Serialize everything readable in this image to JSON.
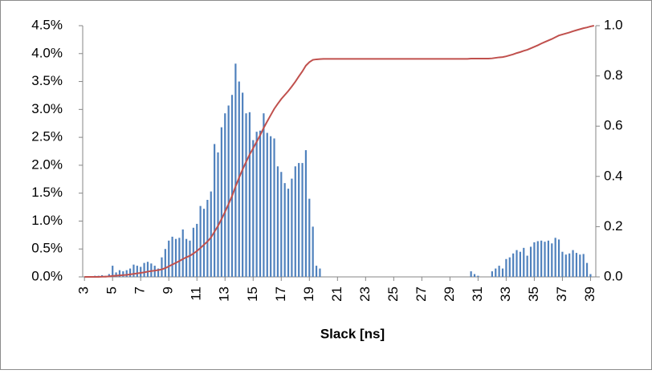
{
  "chart_data": {
    "type": "bar",
    "x_label": "Slack [ns]",
    "x": [
      3,
      3.25,
      3.5,
      3.75,
      4,
      4.25,
      4.5,
      4.75,
      5,
      5.25,
      5.5,
      5.75,
      6,
      6.25,
      6.5,
      6.75,
      7,
      7.25,
      7.5,
      7.75,
      8,
      8.25,
      8.5,
      8.75,
      9,
      9.25,
      9.5,
      9.75,
      10,
      10.25,
      10.5,
      10.75,
      11,
      11.25,
      11.5,
      11.75,
      12,
      12.25,
      12.5,
      12.75,
      13,
      13.25,
      13.5,
      13.75,
      14,
      14.25,
      14.5,
      14.75,
      15,
      15.25,
      15.5,
      15.75,
      16,
      16.25,
      16.5,
      16.75,
      17,
      17.25,
      17.5,
      17.75,
      18,
      18.25,
      18.5,
      18.75,
      19,
      19.25,
      19.5,
      19.75,
      20,
      20.25,
      20.5,
      20.75,
      21,
      21.25,
      21.5,
      21.75,
      22,
      22.25,
      22.5,
      22.75,
      23,
      23.25,
      23.5,
      23.75,
      24,
      24.25,
      24.5,
      24.75,
      25,
      25.25,
      25.5,
      25.75,
      26,
      26.25,
      26.5,
      26.75,
      27,
      27.25,
      27.5,
      27.75,
      28,
      28.25,
      28.5,
      28.75,
      29,
      29.25,
      29.5,
      29.75,
      30,
      30.25,
      30.5,
      30.75,
      31,
      31.25,
      31.5,
      31.75,
      32,
      32.25,
      32.5,
      32.75,
      33,
      33.25,
      33.5,
      33.75,
      34,
      34.25,
      34.5,
      34.75,
      35,
      35.25,
      35.5,
      35.75,
      36,
      36.25,
      36.5,
      36.75,
      37,
      37.25,
      37.5,
      37.75,
      38,
      38.25,
      38.5,
      38.75,
      39,
      39.25
    ],
    "series": [
      {
        "type": "bar",
        "color": "#4f81bd",
        "values": [
          0,
          0,
          0,
          0.02,
          0.02,
          0.03,
          0.02,
          0.05,
          0.2,
          0.08,
          0.12,
          0.1,
          0.12,
          0.15,
          0.22,
          0.2,
          0.18,
          0.25,
          0.27,
          0.24,
          0.2,
          0.15,
          0.35,
          0.5,
          0.65,
          0.72,
          0.68,
          0.7,
          0.85,
          0.68,
          0.65,
          0.88,
          0.95,
          1.27,
          1.22,
          1.38,
          1.53,
          2.38,
          2.23,
          2.68,
          2.93,
          3.07,
          3.26,
          3.82,
          3.5,
          3.3,
          2.93,
          2.95,
          2.45,
          2.6,
          2.62,
          2.93,
          2.58,
          2.52,
          2.48,
          1.98,
          1.88,
          1.68,
          1.58,
          1.76,
          1.98,
          2.04,
          2.04,
          2.27,
          1.4,
          0.9,
          0.2,
          0.15,
          0,
          0,
          0,
          0,
          0,
          0,
          0,
          0,
          0,
          0,
          0,
          0,
          0,
          0,
          0,
          0,
          0,
          0,
          0,
          0,
          0,
          0,
          0,
          0,
          0,
          0,
          0,
          0,
          0,
          0,
          0,
          0,
          0,
          0,
          0,
          0,
          0,
          0,
          0,
          0,
          0,
          0,
          0.1,
          0.05,
          0.02,
          0,
          0,
          0,
          0.1,
          0.15,
          0.2,
          0.15,
          0.32,
          0.35,
          0.42,
          0.48,
          0.45,
          0.52,
          0.38,
          0.54,
          0.62,
          0.64,
          0.65,
          0.63,
          0.65,
          0.6,
          0.7,
          0.67,
          0.45,
          0.4,
          0.42,
          0.48,
          0.43,
          0.4,
          0.41,
          0.25,
          0.05,
          0
        ]
      },
      {
        "type": "line",
        "axis": "y2",
        "color": "#c0504d",
        "values": [
          0,
          0,
          0,
          0,
          0,
          0.001,
          0.001,
          0.002,
          0.004,
          0.005,
          0.006,
          0.007,
          0.008,
          0.01,
          0.012,
          0.014,
          0.016,
          0.018,
          0.021,
          0.023,
          0.025,
          0.027,
          0.03,
          0.035,
          0.042,
          0.049,
          0.056,
          0.063,
          0.071,
          0.078,
          0.084,
          0.093,
          0.103,
          0.115,
          0.128,
          0.141,
          0.157,
          0.18,
          0.203,
          0.23,
          0.259,
          0.29,
          0.322,
          0.36,
          0.395,
          0.428,
          0.458,
          0.487,
          0.512,
          0.538,
          0.564,
          0.593,
          0.619,
          0.644,
          0.669,
          0.689,
          0.708,
          0.724,
          0.74,
          0.758,
          0.777,
          0.798,
          0.818,
          0.841,
          0.855,
          0.864,
          0.866,
          0.867,
          0.868,
          0.868,
          0.868,
          0.868,
          0.868,
          0.868,
          0.868,
          0.868,
          0.868,
          0.868,
          0.868,
          0.868,
          0.868,
          0.868,
          0.868,
          0.868,
          0.868,
          0.868,
          0.868,
          0.868,
          0.868,
          0.868,
          0.868,
          0.868,
          0.868,
          0.868,
          0.868,
          0.868,
          0.868,
          0.868,
          0.868,
          0.868,
          0.868,
          0.868,
          0.868,
          0.868,
          0.868,
          0.868,
          0.868,
          0.868,
          0.868,
          0.868,
          0.869,
          0.869,
          0.869,
          0.869,
          0.869,
          0.869,
          0.87,
          0.872,
          0.874,
          0.875,
          0.878,
          0.882,
          0.886,
          0.891,
          0.895,
          0.9,
          0.904,
          0.91,
          0.916,
          0.922,
          0.929,
          0.935,
          0.941,
          0.947,
          0.954,
          0.961,
          0.965,
          0.969,
          0.973,
          0.978,
          0.982,
          0.986,
          0.99,
          0.993,
          0.997,
          1.0
        ]
      }
    ],
    "xlim": [
      2.875,
      39.375
    ],
    "xticks": [
      3,
      5,
      7,
      9,
      11,
      13,
      15,
      17,
      19,
      21,
      23,
      25,
      27,
      29,
      31,
      33,
      35,
      37,
      39
    ],
    "ylim": [
      0,
      4.5
    ],
    "yticks": [
      {
        "value": 0,
        "label": "0.0%"
      },
      {
        "value": 0.5,
        "label": "0.5%"
      },
      {
        "value": 1,
        "label": "1.0%"
      },
      {
        "value": 1.5,
        "label": "1.5%"
      },
      {
        "value": 2,
        "label": "2.0%"
      },
      {
        "value": 2.5,
        "label": "2.5%"
      },
      {
        "value": 3,
        "label": "3.0%"
      },
      {
        "value": 3.5,
        "label": "3.5%"
      },
      {
        "value": 4,
        "label": "4.0%"
      },
      {
        "value": 4.5,
        "label": "4.5%"
      }
    ],
    "y2lim": [
      0,
      1
    ],
    "y2ticks": [
      {
        "value": 0,
        "label": "0.0"
      },
      0.2,
      0.4,
      0.6,
      0.8,
      {
        "value": 1,
        "label": "1.0"
      }
    ],
    "grid": false
  }
}
